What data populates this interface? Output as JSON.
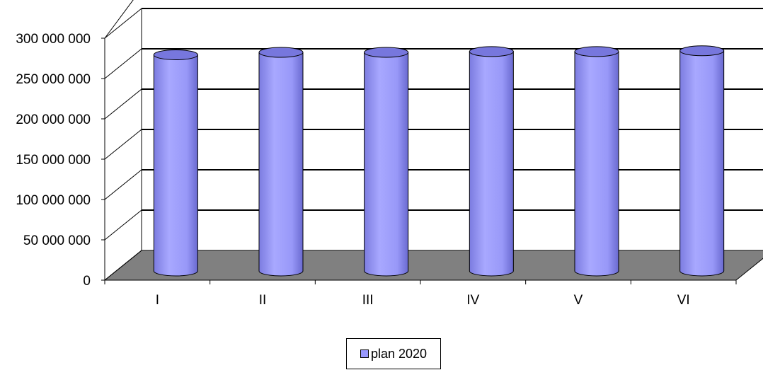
{
  "chart_data": {
    "type": "bar",
    "style": "3d-cylinder",
    "categories": [
      "I",
      "II",
      "III",
      "IV",
      "V",
      "VI"
    ],
    "series": [
      {
        "name": "plan 2020",
        "values": [
          268000000,
          271000000,
          271000000,
          272000000,
          272000000,
          273000000
        ],
        "color": "#9999ff"
      }
    ],
    "ylim": [
      0,
      300000000
    ],
    "yticks": [
      "0",
      "50 000 000",
      "100 000 000",
      "150 000 000",
      "200 000 000",
      "250 000 000",
      "300 000 000"
    ],
    "grid": true,
    "legend_position": "bottom",
    "colors": {
      "bar": "#9999ff",
      "bar_top": "#7777dd",
      "floor": "#808080",
      "wall": "#ffffff"
    }
  }
}
